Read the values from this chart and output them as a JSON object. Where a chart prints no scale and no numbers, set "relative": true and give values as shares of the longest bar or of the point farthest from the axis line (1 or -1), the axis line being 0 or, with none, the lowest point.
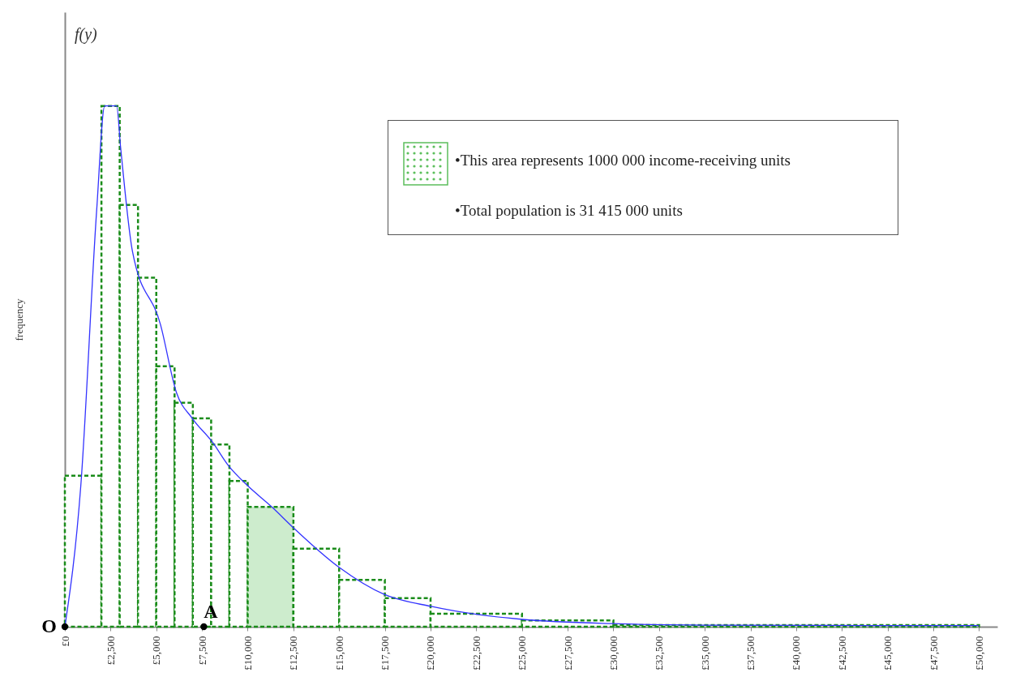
{
  "chart_data": {
    "type": "histogram",
    "relative": true,
    "ylabel": "frequency",
    "bins": [
      0,
      2000,
      3000,
      4000,
      5000,
      6000,
      7000,
      8000,
      9000,
      10000,
      12500,
      15000,
      17500,
      20000,
      25000,
      30000,
      50000
    ],
    "values": [
      0.29,
      1,
      0.81,
      0.67,
      0.5,
      0.43,
      0.4,
      0.35,
      0.28,
      0.23,
      0.15,
      0.09,
      0.055,
      0.025,
      0.012,
      0.003
    ],
    "color": "#1a8c1a",
    "colors": [
      "#ffffff",
      "#ffffff",
      "#ffffff",
      "#ffffff",
      "#ffffff",
      "#ffffff",
      "#ffffff",
      "#ffffff",
      "#ffffff",
      "#cdeccd",
      "#ffffff",
      "#ffffff",
      "#ffffff",
      "#ffffff",
      "#ffffff",
      "#ffffff"
    ],
    "line_style": "dashed",
    "series": [
      {
        "type": "line",
        "line_style": "solid",
        "color": "#3333ff",
        "x": [
          0,
          870,
          1740,
          2180,
          2830,
          3050,
          3700,
          5230,
          6100,
          6970,
          8060,
          8930,
          10020,
          11320,
          12500,
          15000,
          17470,
          20030,
          22650,
          25040,
          29970,
          35700,
          50000
        ],
        "values": [
          0,
          0.27,
          0.8,
          1,
          1,
          0.92,
          0.72,
          0.58,
          0.45,
          0.4,
          0.355,
          0.31,
          0.27,
          0.23,
          0.19,
          0.114,
          0.062,
          0.039,
          0.023,
          0.014,
          0.006,
          0.003,
          0.002
        ]
      }
    ],
    "xlim": [
      0,
      51000
    ],
    "xticks": [
      {
        "value": 0,
        "label": "£0"
      },
      {
        "value": 2500,
        "label": "£2,500"
      },
      {
        "value": 5000,
        "label": "£5,000"
      },
      {
        "value": 7500,
        "label": "£7,500"
      },
      {
        "value": 10000,
        "label": "£10,000"
      },
      {
        "value": 12500,
        "label": "£12,500"
      },
      {
        "value": 15000,
        "label": "£15,000"
      },
      {
        "value": 17500,
        "label": "£17,500"
      },
      {
        "value": 20000,
        "label": "£20,000"
      },
      {
        "value": 22500,
        "label": "£22,500"
      },
      {
        "value": 25000,
        "label": "£25,000"
      },
      {
        "value": 27500,
        "label": "£27,500"
      },
      {
        "value": 30000,
        "label": "£30,000"
      },
      {
        "value": 32500,
        "label": "£32,500"
      },
      {
        "value": 35000,
        "label": "£35,000"
      },
      {
        "value": 37500,
        "label": "£37,500"
      },
      {
        "value": 40000,
        "label": "£40,000"
      },
      {
        "value": 42500,
        "label": "£42,500"
      },
      {
        "value": 45000,
        "label": "£45,000"
      },
      {
        "value": 47500,
        "label": "£47,500"
      },
      {
        "value": 50000,
        "label": "£50,000"
      }
    ],
    "annotations": [
      "f(y)",
      {
        "text": "O",
        "x": 0,
        "y": 0
      },
      {
        "text": "A",
        "x": 7600,
        "y": 0
      },
      "•This area represents 1000 000 income-receiving  units",
      "•Total population is 31 415 000 units"
    ]
  }
}
